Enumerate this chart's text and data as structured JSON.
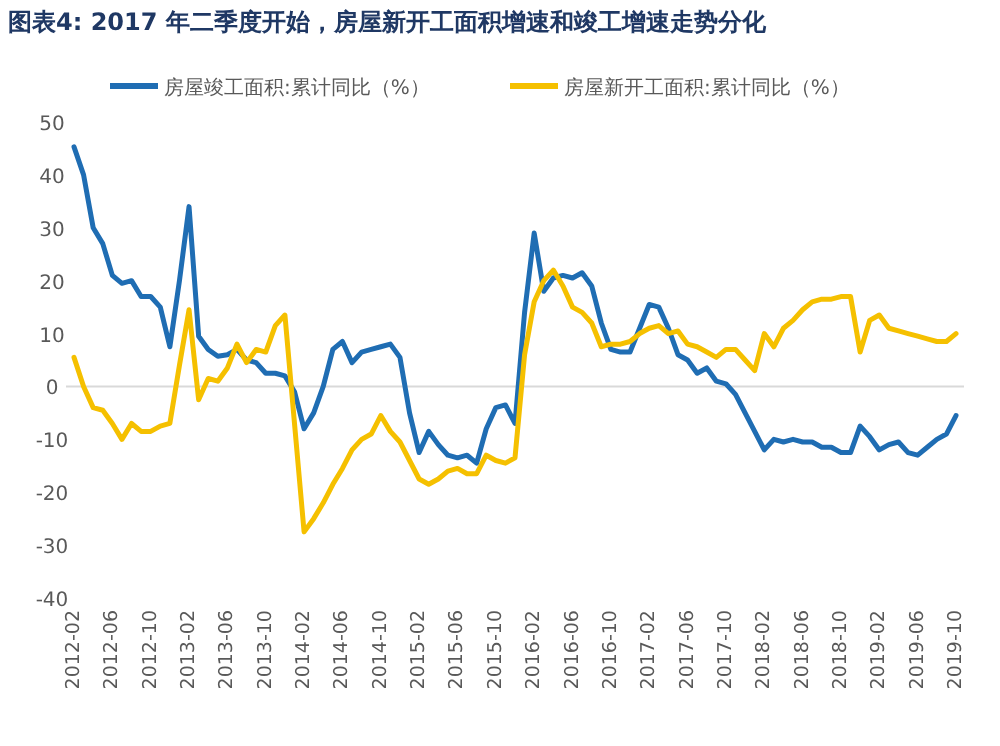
{
  "chart_data": {
    "type": "line",
    "title": "图表4:  2017 年二季度开始，房屋新开工面积增速和竣工增速走势分化",
    "categories": [
      "2012-02",
      null,
      null,
      null,
      "2012-06",
      null,
      null,
      null,
      "2012-10",
      null,
      null,
      null,
      "2013-02",
      null,
      null,
      null,
      "2013-06",
      null,
      null,
      null,
      "2013-10",
      null,
      null,
      null,
      "2014-02",
      null,
      null,
      null,
      "2014-06",
      null,
      null,
      null,
      "2014-10",
      null,
      null,
      null,
      "2015-02",
      null,
      null,
      null,
      "2015-06",
      null,
      null,
      null,
      "2015-10",
      null,
      null,
      null,
      "2016-02",
      null,
      null,
      null,
      "2016-06",
      null,
      null,
      null,
      "2016-10",
      null,
      null,
      null,
      "2017-02",
      null,
      null,
      null,
      "2017-06",
      null,
      null,
      null,
      "2017-10",
      null,
      null,
      null,
      "2018-02",
      null,
      null,
      null,
      "2018-06",
      null,
      null,
      null,
      "2018-10",
      null,
      null,
      null,
      "2019-02",
      null,
      null,
      null,
      "2019-06",
      null,
      null,
      null,
      "2019-10"
    ],
    "series": [
      {
        "name": "房屋竣工面积:累计同比（%）",
        "color": "#1f6db3",
        "values": [
          45.3,
          40,
          30,
          27,
          21,
          19.5,
          20,
          17,
          17,
          15,
          7.5,
          20,
          34,
          9.5,
          7,
          5.7,
          6,
          7,
          5,
          4.5,
          2.5,
          2.5,
          2,
          -1,
          -8,
          -5,
          0,
          7,
          8.5,
          4.5,
          6.5,
          7,
          7.5,
          8,
          5.5,
          -5,
          -12.5,
          -8.5,
          -11,
          -13,
          -13.5,
          -13,
          -14.5,
          -8,
          -4,
          -3.5,
          -7,
          14,
          29,
          18,
          20.5,
          21,
          20.5,
          21.5,
          19,
          12,
          7,
          6.5,
          6.5,
          11,
          15.5,
          15,
          11,
          6,
          5,
          2.5,
          3.5,
          1,
          0.5,
          -1.5,
          -5,
          -8.5,
          -12,
          -10,
          -10.5,
          -10,
          -10.5,
          -10.5,
          -11.5,
          -11.5,
          -12.5,
          -12.5,
          -7.5,
          -9.5,
          -12,
          -11,
          -10.5,
          -12.5,
          -13,
          -11.5,
          -10,
          -9,
          -5.5
        ]
      },
      {
        "name": "房屋新开工面积:累计同比（%）",
        "color": "#f5c000",
        "values": [
          5.5,
          0,
          -4,
          -4.5,
          -7,
          -10,
          -7,
          -8.5,
          -8.5,
          -7.5,
          -7,
          4,
          14.5,
          -2.5,
          1.5,
          1,
          3.5,
          8,
          4.5,
          7,
          6.5,
          11.5,
          13.5,
          -7,
          -27.5,
          -25,
          -22,
          -18.5,
          -15.5,
          -12,
          -10,
          -9,
          -5.5,
          -8.5,
          -10.5,
          -14,
          -17.5,
          -18.5,
          -17.5,
          -16,
          -15.5,
          -16.5,
          -16.5,
          -13,
          -14,
          -14.5,
          -13.5,
          6,
          16,
          20,
          22,
          19,
          15,
          14,
          12,
          7.5,
          8,
          8,
          8.5,
          10,
          11,
          11.5,
          10,
          10.5,
          8,
          7.5,
          6.5,
          5.5,
          7,
          7,
          5,
          3,
          10,
          7.5,
          11,
          12.5,
          14.5,
          16,
          16.5,
          16.5,
          17,
          17,
          6.5,
          12.5,
          13.5,
          11,
          10.5,
          10,
          9.5,
          9,
          8.5,
          8.5,
          10
        ]
      }
    ],
    "ylim": [
      -40,
      50
    ],
    "yticks": [
      -40,
      -30,
      -20,
      -10,
      0,
      10,
      20,
      30,
      40,
      50
    ],
    "ref_lines": [
      {
        "axis": "y",
        "value": 0,
        "color": "#d9d9d9"
      }
    ],
    "legend": "top",
    "marker": "none",
    "line_style": "solid"
  }
}
